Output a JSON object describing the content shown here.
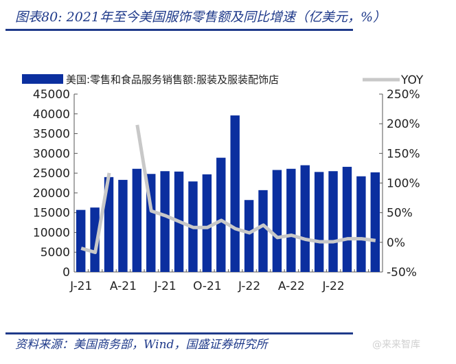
{
  "header": {
    "title": "图表80: 2021年至今美国服饰零售额及同比增速（亿美元，%）"
  },
  "footer": {
    "source": "资料来源：美国商务部，Wind，国盛证券研究所",
    "watermark": "@来来智库"
  },
  "chart_data": {
    "type": "bar+line",
    "colors": {
      "bar": "#0b2f9f",
      "line": "#c8c8c8"
    },
    "legend_position": "top",
    "categories": [
      "2021-01",
      "2021-02",
      "2021-03",
      "2021-04",
      "2021-05",
      "2021-06",
      "2021-07",
      "2021-08",
      "2021-09",
      "2021-10",
      "2021-11",
      "2021-12",
      "2022-01",
      "2022-02",
      "2022-03",
      "2022-04",
      "2022-05",
      "2022-06",
      "2022-07",
      "2022-08",
      "2022-09",
      "2022-10"
    ],
    "x_tick_labels": [
      "J-21",
      "A-21",
      "J-21",
      "O-21",
      "J-22",
      "A-22",
      "J-22"
    ],
    "series": [
      {
        "name": "美国:零售和食品服务销售额:服装及服装配饰店",
        "axis": "left",
        "type": "bar",
        "values": [
          15700,
          16300,
          24000,
          23300,
          26100,
          24800,
          25500,
          25400,
          22900,
          24700,
          28900,
          39600,
          18200,
          20700,
          25800,
          26100,
          27000,
          25300,
          25500,
          26600,
          24200,
          25200
        ]
      },
      {
        "name": "YOY",
        "axis": "right",
        "type": "line",
        "values": [
          -10,
          -17,
          117,
          null,
          198,
          53,
          45,
          35,
          25,
          25,
          37,
          23,
          16,
          29,
          8,
          12,
          5,
          1,
          1,
          6,
          6,
          3
        ]
      }
    ],
    "left_axis": {
      "ylim": [
        0,
        45000
      ],
      "ticks": [
        "0",
        "5000",
        "10000",
        "15000",
        "20000",
        "25000",
        "30000",
        "35000",
        "40000",
        "45000"
      ]
    },
    "right_axis": {
      "ylim": [
        -50,
        250
      ],
      "ticks": [
        "-50%",
        "0%",
        "50%",
        "100%",
        "150%",
        "200%",
        "250%"
      ]
    },
    "grid": false
  }
}
